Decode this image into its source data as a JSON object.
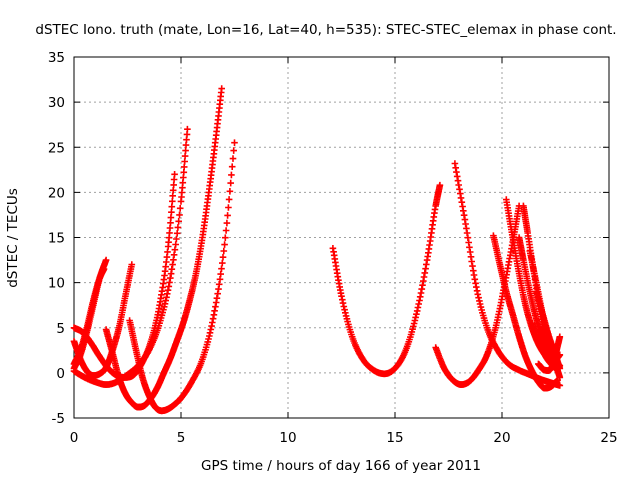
{
  "chart_data": {
    "type": "scatter",
    "title": "dSTEC Iono. truth (mate, Lon=16, Lat=40, h=535): STEC-STEC_elemax in phase cont.",
    "xlabel": "GPS time / hours of day 166 of year 2011",
    "ylabel": "dSTEC  / TECUs",
    "xlim": [
      0,
      25
    ],
    "ylim": [
      -5,
      35
    ],
    "x_ticks": [
      0,
      5,
      10,
      15,
      20,
      25
    ],
    "y_ticks": [
      -5,
      0,
      5,
      10,
      15,
      20,
      25,
      30,
      35
    ],
    "grid": true,
    "legend": "none",
    "marker": "plus",
    "color": "#ff0000",
    "series": [
      {
        "x": [
          0.0,
          0.3,
          0.6,
          0.9,
          1.2,
          1.5
        ],
        "y": [
          0.5,
          2.0,
          4.5,
          7.5,
          10.5,
          12.5
        ]
      },
      {
        "x": [
          0.0,
          0.3,
          0.6,
          0.9,
          1.2,
          1.4
        ],
        "y": [
          1.0,
          2.5,
          5.0,
          8.0,
          10.5,
          11.5
        ]
      },
      {
        "x": [
          0.0,
          0.3,
          0.6,
          0.9,
          1.2,
          1.5,
          1.8,
          2.1,
          2.4,
          2.7
        ],
        "y": [
          3.5,
          1.5,
          0.2,
          -0.3,
          -0.1,
          0.6,
          2.5,
          5.0,
          8.5,
          12.0
        ]
      },
      {
        "x": [
          0.0,
          0.4,
          0.8,
          1.2,
          1.6,
          2.0,
          2.4,
          2.8,
          3.2,
          3.6,
          4.0,
          4.4,
          4.7
        ],
        "y": [
          5.0,
          4.5,
          3.3,
          1.8,
          0.5,
          -0.3,
          -0.5,
          -0.2,
          1.2,
          3.5,
          7.5,
          14.0,
          22.0
        ]
      },
      {
        "x": [
          0.0,
          0.5,
          1.0,
          1.5,
          2.0,
          2.5,
          3.0,
          3.5,
          4.0,
          4.5,
          5.0,
          5.3
        ],
        "y": [
          0.2,
          -0.5,
          -1.0,
          -1.3,
          -1.0,
          -0.2,
          0.8,
          2.5,
          5.5,
          10.5,
          19.0,
          27.0
        ]
      },
      {
        "x": [
          1.5,
          1.8,
          2.1,
          2.4,
          2.7,
          3.0,
          3.3,
          3.6,
          3.9,
          4.2,
          4.5,
          4.8,
          5.1,
          5.4,
          5.7,
          6.0,
          6.3,
          6.6,
          6.9
        ],
        "y": [
          4.8,
          2.2,
          -0.5,
          -2.3,
          -3.3,
          -3.8,
          -3.6,
          -2.8,
          -1.6,
          0.0,
          1.6,
          3.5,
          5.5,
          8.0,
          11.0,
          15.0,
          20.0,
          25.5,
          31.5
        ]
      },
      {
        "x": [
          2.6,
          2.9,
          3.2,
          3.5,
          3.8,
          4.1,
          4.4,
          4.7,
          5.0,
          5.5,
          6.0,
          6.5,
          7.0,
          7.5
        ],
        "y": [
          5.8,
          2.5,
          -0.5,
          -2.5,
          -3.8,
          -4.2,
          -4.0,
          -3.5,
          -2.8,
          -1.0,
          1.5,
          6.0,
          13.5,
          25.5
        ]
      },
      {
        "x": [
          12.1,
          12.5,
          13.0,
          13.5,
          14.0,
          14.5,
          15.0,
          15.5,
          16.0,
          16.5,
          16.9,
          17.1
        ],
        "y": [
          13.8,
          8.5,
          4.0,
          1.5,
          0.3,
          -0.1,
          0.5,
          2.5,
          6.5,
          12.5,
          18.5,
          20.8
        ]
      },
      {
        "x": [
          16.9,
          17.3,
          17.7,
          18.1,
          18.5,
          18.9,
          19.3,
          19.7,
          20.1,
          20.5,
          20.8
        ],
        "y": [
          2.8,
          0.5,
          -0.8,
          -1.3,
          -0.9,
          0.3,
          2.0,
          5.0,
          9.5,
          14.5,
          18.5
        ]
      },
      {
        "x": [
          17.8,
          18.3,
          18.8,
          19.3,
          19.8,
          20.3,
          20.8,
          21.3,
          21.8,
          22.3,
          22.7
        ],
        "y": [
          23.2,
          16.5,
          9.5,
          5.0,
          2.5,
          1.0,
          0.3,
          -0.2,
          -0.7,
          -1.1,
          -1.4
        ]
      },
      {
        "x": [
          19.6,
          19.9,
          20.2,
          20.5,
          20.8,
          21.1,
          21.4,
          21.7,
          22.0,
          22.3,
          22.6
        ],
        "y": [
          15.2,
          12.0,
          9.0,
          6.5,
          4.0,
          1.8,
          0.2,
          -1.0,
          -1.7,
          -1.5,
          -0.8
        ]
      },
      {
        "x": [
          20.2,
          20.5,
          20.8,
          21.1,
          21.4,
          21.7,
          22.0,
          22.3,
          22.6
        ],
        "y": [
          19.2,
          15.0,
          11.0,
          7.5,
          5.0,
          3.2,
          2.0,
          1.0,
          0.3
        ]
      },
      {
        "x": [
          20.8,
          21.0,
          21.3,
          21.6,
          21.9,
          22.2,
          22.5,
          22.7
        ],
        "y": [
          15.0,
          12.5,
          9.0,
          6.0,
          3.8,
          2.2,
          1.5,
          2.0
        ]
      },
      {
        "x": [
          21.0,
          21.2,
          21.5,
          21.8,
          22.1,
          22.4,
          22.7
        ],
        "y": [
          18.5,
          15.5,
          11.0,
          6.5,
          3.0,
          1.3,
          0.8
        ]
      },
      {
        "x": [
          21.3,
          21.6,
          21.9,
          22.2,
          22.5,
          22.7
        ],
        "y": [
          13.5,
          10.0,
          6.5,
          3.5,
          1.0,
          -0.5
        ]
      },
      {
        "x": [
          21.6,
          21.9,
          22.2,
          22.5,
          22.7
        ],
        "y": [
          9.0,
          6.5,
          4.0,
          2.0,
          0.5
        ]
      },
      {
        "x": [
          21.7,
          22.0,
          22.3,
          22.5,
          22.7
        ],
        "y": [
          1.0,
          0.3,
          0.5,
          2.0,
          4.0
        ]
      },
      {
        "x": [
          21.4,
          21.7,
          22.0,
          22.3,
          22.6
        ],
        "y": [
          5.5,
          3.5,
          2.0,
          1.0,
          0.8
        ]
      }
    ]
  }
}
